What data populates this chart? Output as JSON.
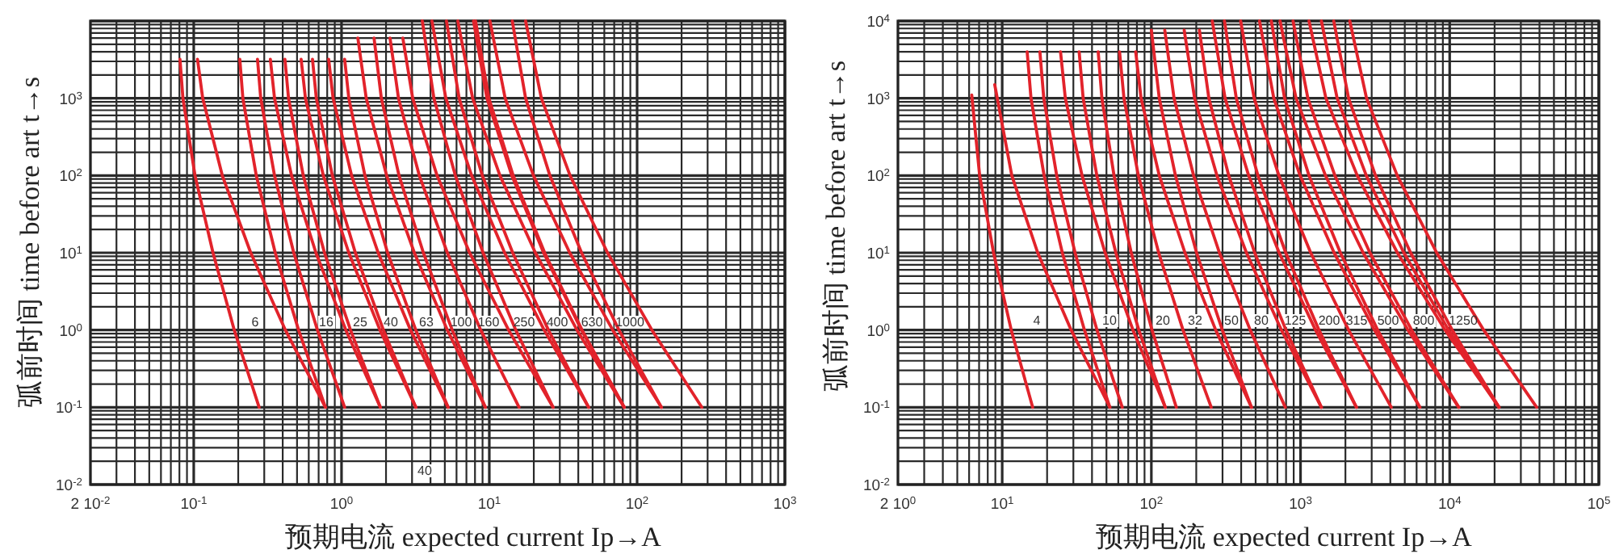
{
  "chart_data": [
    {
      "type": "line",
      "xlabel": "预期电流 expected current Ip→A",
      "ylabel": "弧前时间 time before art t→s",
      "log": "xy",
      "grid": true,
      "xlim": [
        0.02,
        1000
      ],
      "ylim": [
        0.01,
        10000
      ],
      "xticks": [
        {
          "value": 0.02,
          "label": "2 10$^{-2}$"
        },
        {
          "value": 0.1,
          "label": "10$^{-1}$"
        },
        {
          "value": 1,
          "label": "10$^{0}$"
        },
        {
          "value": 10,
          "label": "10$^{1}$"
        },
        {
          "value": 100,
          "label": "10$^{2}$"
        },
        {
          "value": 1000,
          "label": "10$^{3}$"
        }
      ],
      "yticks": [
        {
          "value": 0.01,
          "label": "10$^{-2}$"
        },
        {
          "value": 0.1,
          "label": "10$^{-1}$"
        },
        {
          "value": 1,
          "label": "10$^{0}$"
        },
        {
          "value": 10,
          "label": "10$^{1}$"
        },
        {
          "value": 100,
          "label": "10$^{2}$"
        },
        {
          "value": 1000,
          "label": "10$^{3}$"
        }
      ],
      "series": [
        {
          "color": "#e2232b",
          "x": [
            0.277,
            0.188,
            0.135,
            0.102,
            0.0845,
            0.0807
          ],
          "values": [
            0.1,
            1,
            10,
            100,
            1000,
            3200
          ]
        },
        {
          "color": "#e2232b",
          "x": [
            0.778,
            0.417,
            0.243,
            0.156,
            0.115,
            0.106
          ],
          "values": [
            0.1,
            1,
            10,
            100,
            1000,
            3200
          ]
        },
        {
          "color": "#e2232b",
          "x": [
            0.778,
            0.512,
            0.356,
            0.265,
            0.215,
            0.205
          ],
          "values": [
            0.1,
            1,
            10,
            100,
            1000,
            3200
          ]
        },
        {
          "color": "#e2232b",
          "x": [
            1.05,
            0.687,
            0.475,
            0.352,
            0.284,
            0.27
          ],
          "values": [
            0.1,
            1,
            10,
            100,
            1000,
            3200
          ]
        },
        {
          "color": "#e2232b",
          "x": [
            1.83,
            1.07,
            0.671,
            0.459,
            0.352,
            0.33
          ],
          "values": [
            0.1,
            1,
            10,
            100,
            1000,
            3200
          ]
        },
        {
          "color": "#e2232b",
          "x": [
            1.83,
            1.15,
            0.767,
            0.551,
            0.438,
            0.414
          ],
          "values": [
            0.1,
            1,
            10,
            100,
            1000,
            3200
          ]
        },
        {
          "color": "#e2232b",
          "x": [
            3.18,
            1.82,
            1.12,
            0.753,
            0.57,
            0.533
          ],
          "values": [
            0.1,
            1,
            10,
            100,
            1000,
            3200
          ]
        },
        {
          "color": "#e2232b",
          "x": [
            3.18,
            1.92,
            1.24,
            0.867,
            0.675,
            0.636
          ],
          "values": [
            0.1,
            1,
            10,
            100,
            1000,
            3200
          ]
        },
        {
          "color": "#e2232b",
          "x": [
            5.26,
            2.93,
            1.77,
            1.17,
            0.877,
            0.818
          ],
          "values": [
            0.1,
            1,
            10,
            100,
            1000,
            3200
          ]
        },
        {
          "color": "#e2232b",
          "x": [
            5.26,
            3.18,
            2.05,
            1.44,
            1.12,
            1.05
          ],
          "values": [
            0.1,
            1,
            10,
            100,
            1000,
            3200
          ]
        },
        {
          "color": "#e2232b",
          "x": [
            9.4,
            5.2,
            3.11,
            2.02,
            1.47,
            1.29
          ],
          "values": [
            0.1,
            1,
            10,
            100,
            1000,
            6000
          ]
        },
        {
          "color": "#e2232b",
          "x": [
            9.4,
            5.61,
            3.58,
            2.45,
            1.86,
            1.66
          ],
          "values": [
            0.1,
            1,
            10,
            100,
            1000,
            6000
          ]
        },
        {
          "color": "#e2232b",
          "x": [
            15.9,
            8.75,
            5.2,
            3.36,
            2.43,
            2.13
          ],
          "values": [
            0.1,
            1,
            10,
            100,
            1000,
            6000
          ]
        },
        {
          "color": "#e2232b",
          "x": [
            27,
            13.5,
            7.36,
            4.43,
            3.03,
            2.6
          ],
          "values": [
            0.1,
            1,
            10,
            100,
            1000,
            6000
          ]
        },
        {
          "color": "#e2232b",
          "x": [
            27,
            15.1,
            9.08,
            5.89,
            4.22,
            3.52
          ],
          "values": [
            0.1,
            1,
            10,
            100,
            1000,
            10000
          ]
        },
        {
          "color": "#e2232b",
          "x": [
            47,
            23.5,
            12.7,
            7.59,
            5.08,
            4.09
          ],
          "values": [
            0.1,
            1,
            10,
            100,
            1000,
            10000
          ]
        },
        {
          "color": "#e2232b",
          "x": [
            47,
            25.1,
            14.4,
            8.97,
            6.25,
            5.13
          ],
          "values": [
            0.1,
            1,
            10,
            100,
            1000,
            10000
          ]
        },
        {
          "color": "#e2232b",
          "x": [
            81.8,
            39.2,
            20.5,
            11.8,
            7.71,
            6.12
          ],
          "values": [
            0.1,
            1,
            10,
            100,
            1000,
            10000
          ]
        },
        {
          "color": "#e2232b",
          "x": [
            81.8,
            42,
            23.3,
            14.2,
            9.64,
            7.82
          ],
          "values": [
            0.1,
            1,
            10,
            100,
            1000,
            10000
          ]
        },
        {
          "color": "#e2232b",
          "x": [
            81.8,
            42.4,
            23.7,
            14.5,
            9.93,
            8.07
          ],
          "values": [
            0.1,
            1,
            10,
            100,
            1000,
            10000
          ]
        },
        {
          "color": "#e2232b",
          "x": [
            146,
            68.4,
            35,
            19.9,
            12.8,
            10.1
          ],
          "values": [
            0.1,
            1,
            10,
            100,
            1000,
            10000
          ]
        },
        {
          "color": "#e2232b",
          "x": [
            146,
            75.3,
            42.1,
            25.7,
            17.6,
            14.3
          ],
          "values": [
            0.1,
            1,
            10,
            100,
            1000,
            10000
          ]
        },
        {
          "color": "#e2232b",
          "x": [
            274,
            126,
            63.1,
            35.2,
            22.5,
            17.6
          ],
          "values": [
            0.1,
            1,
            10,
            100,
            1000,
            10000
          ]
        }
      ],
      "annotations": [
        "6",
        "16",
        "25",
        "40",
        "63",
        "100",
        "160",
        "250",
        "400",
        "630",
        "1000",
        "40"
      ]
    },
    {
      "type": "line",
      "xlabel": "预期电流 expected current Ip→A",
      "ylabel": "弧前时间 time before art t→s",
      "log": "xy",
      "grid": true,
      "xlim": [
        2,
        100000
      ],
      "ylim": [
        0.01,
        10000
      ],
      "xticks": [
        {
          "value": 2,
          "label": "2 10$^{0}$"
        },
        {
          "value": 10,
          "label": "10$^{1}$"
        },
        {
          "value": 100,
          "label": "10$^{2}$"
        },
        {
          "value": 1000,
          "label": "10$^{3}$"
        },
        {
          "value": 10000,
          "label": "10$^{4}$"
        },
        {
          "value": 100000,
          "label": "10$^{5}$"
        }
      ],
      "yticks": [
        {
          "value": 0.01,
          "label": "10$^{-2}$"
        },
        {
          "value": 0.1,
          "label": "10$^{-1}$"
        },
        {
          "value": 1,
          "label": "10$^{0}$"
        },
        {
          "value": 10,
          "label": "10$^{1}$"
        },
        {
          "value": 100,
          "label": "10$^{2}$"
        },
        {
          "value": 1000,
          "label": "10$^{3}$"
        },
        {
          "value": 10000,
          "label": "10$^{4}$"
        }
      ],
      "series": [
        {
          "color": "#e2232b",
          "x": [
            16,
            11.5,
            8.75,
            7.06,
            6.25
          ],
          "values": [
            0.1,
            1,
            10,
            100,
            1100
          ]
        },
        {
          "color": "#e2232b",
          "x": [
            52.7,
            29,
            17.3,
            11.6,
            8.91
          ],
          "values": [
            0.1,
            1,
            10,
            100,
            1500
          ]
        },
        {
          "color": "#e2232b",
          "x": [
            52.7,
            35.6,
            25.3,
            19.1,
            15.6,
            14.7
          ],
          "values": [
            0.1,
            1,
            10,
            100,
            1000,
            4000
          ]
        },
        {
          "color": "#e2232b",
          "x": [
            63.8,
            43.2,
            30.8,
            23.2,
            19,
            17.9
          ],
          "values": [
            0.1,
            1,
            10,
            100,
            1000,
            4000
          ]
        },
        {
          "color": "#e2232b",
          "x": [
            124,
            75.3,
            49,
            34.3,
            26.5,
            24.6
          ],
          "values": [
            0.1,
            1,
            10,
            100,
            1000,
            4000
          ]
        },
        {
          "color": "#e2232b",
          "x": [
            124,
            82.4,
            57.8,
            43.1,
            34.9,
            32.8
          ],
          "values": [
            0.1,
            1,
            10,
            100,
            1000,
            4000
          ]
        },
        {
          "color": "#e2232b",
          "x": [
            147,
            101,
            73.3,
            56.2,
            46.6,
            44
          ],
          "values": [
            0.1,
            1,
            10,
            100,
            1000,
            4000
          ]
        },
        {
          "color": "#e2232b",
          "x": [
            252,
            163,
            112,
            81.8,
            65.5,
            61.2
          ],
          "values": [
            0.1,
            1,
            10,
            100,
            1000,
            4000
          ]
        },
        {
          "color": "#e2232b",
          "x": [
            469,
            270,
            168,
            113,
            85.3,
            78.5
          ],
          "values": [
            0.1,
            1,
            10,
            100,
            1000,
            4000
          ]
        },
        {
          "color": "#e2232b",
          "x": [
            469,
            299,
            201,
            145,
            113,
            100
          ],
          "values": [
            0.1,
            1,
            10,
            100,
            1000,
            7600
          ]
        },
        {
          "color": "#e2232b",
          "x": [
            791,
            460,
            286,
            192,
            142,
            123
          ],
          "values": [
            0.1,
            1,
            10,
            100,
            1000,
            7600
          ]
        },
        {
          "color": "#e2232b",
          "x": [
            1380,
            745,
            434,
            275,
            195,
            166
          ],
          "values": [
            0.1,
            1,
            10,
            100,
            1000,
            7600
          ]
        },
        {
          "color": "#e2232b",
          "x": [
            1380,
            798,
            493,
            330,
            243,
            210
          ],
          "values": [
            0.1,
            1,
            10,
            100,
            1000,
            7600
          ]
        },
        {
          "color": "#e2232b",
          "x": [
            2370,
            1260,
            719,
            449,
            312,
            256
          ],
          "values": [
            0.1,
            1,
            10,
            100,
            1000,
            10000
          ]
        },
        {
          "color": "#e2232b",
          "x": [
            2370,
            1330,
            796,
            518,
            371,
            309
          ],
          "values": [
            0.1,
            1,
            10,
            100,
            1000,
            10000
          ]
        },
        {
          "color": "#e2232b",
          "x": [
            4060,
            2100,
            1170,
            716,
            489,
            397
          ],
          "values": [
            0.1,
            1,
            10,
            100,
            1000,
            10000
          ]
        },
        {
          "color": "#e2232b",
          "x": [
            6310,
            3130,
            1680,
            993,
            662,
            531
          ],
          "values": [
            0.1,
            1,
            10,
            100,
            1000,
            10000
          ]
        },
        {
          "color": "#e2232b",
          "x": [
            6310,
            3290,
            1850,
            1140,
            782,
            637
          ],
          "values": [
            0.1,
            1,
            10,
            100,
            1000,
            10000
          ]
        },
        {
          "color": "#e2232b",
          "x": [
            11500,
            5250,
            2630,
            1470,
            933,
            729
          ],
          "values": [
            0.1,
            1,
            10,
            100,
            1000,
            10000
          ]
        },
        {
          "color": "#e2232b",
          "x": [
            11500,
            5560,
            2920,
            1700,
            1120,
            891
          ],
          "values": [
            0.1,
            1,
            10,
            100,
            1000,
            10000
          ]
        },
        {
          "color": "#e2232b",
          "x": [
            21400,
            9310,
            4460,
            2400,
            1480,
            1140
          ],
          "values": [
            0.1,
            1,
            10,
            100,
            1000,
            10000
          ]
        },
        {
          "color": "#e2232b",
          "x": [
            21400,
            9820,
            4930,
            2760,
            1760,
            1380
          ],
          "values": [
            0.1,
            1,
            10,
            100,
            1000,
            10000
          ]
        },
        {
          "color": "#e2232b",
          "x": [
            21400,
            10400,
            5470,
            3180,
            2100,
            1670
          ],
          "values": [
            0.1,
            1,
            10,
            100,
            1000,
            10000
          ]
        },
        {
          "color": "#e2232b",
          "x": [
            38300,
            16900,
            8180,
            4450,
            2770,
            2140
          ],
          "values": [
            0.1,
            1,
            10,
            100,
            1000,
            10000
          ]
        }
      ],
      "annotations": [
        "4",
        "10",
        "20",
        "32",
        "50",
        "80",
        "125",
        "200",
        "315",
        "500",
        "800",
        "1250"
      ]
    }
  ]
}
